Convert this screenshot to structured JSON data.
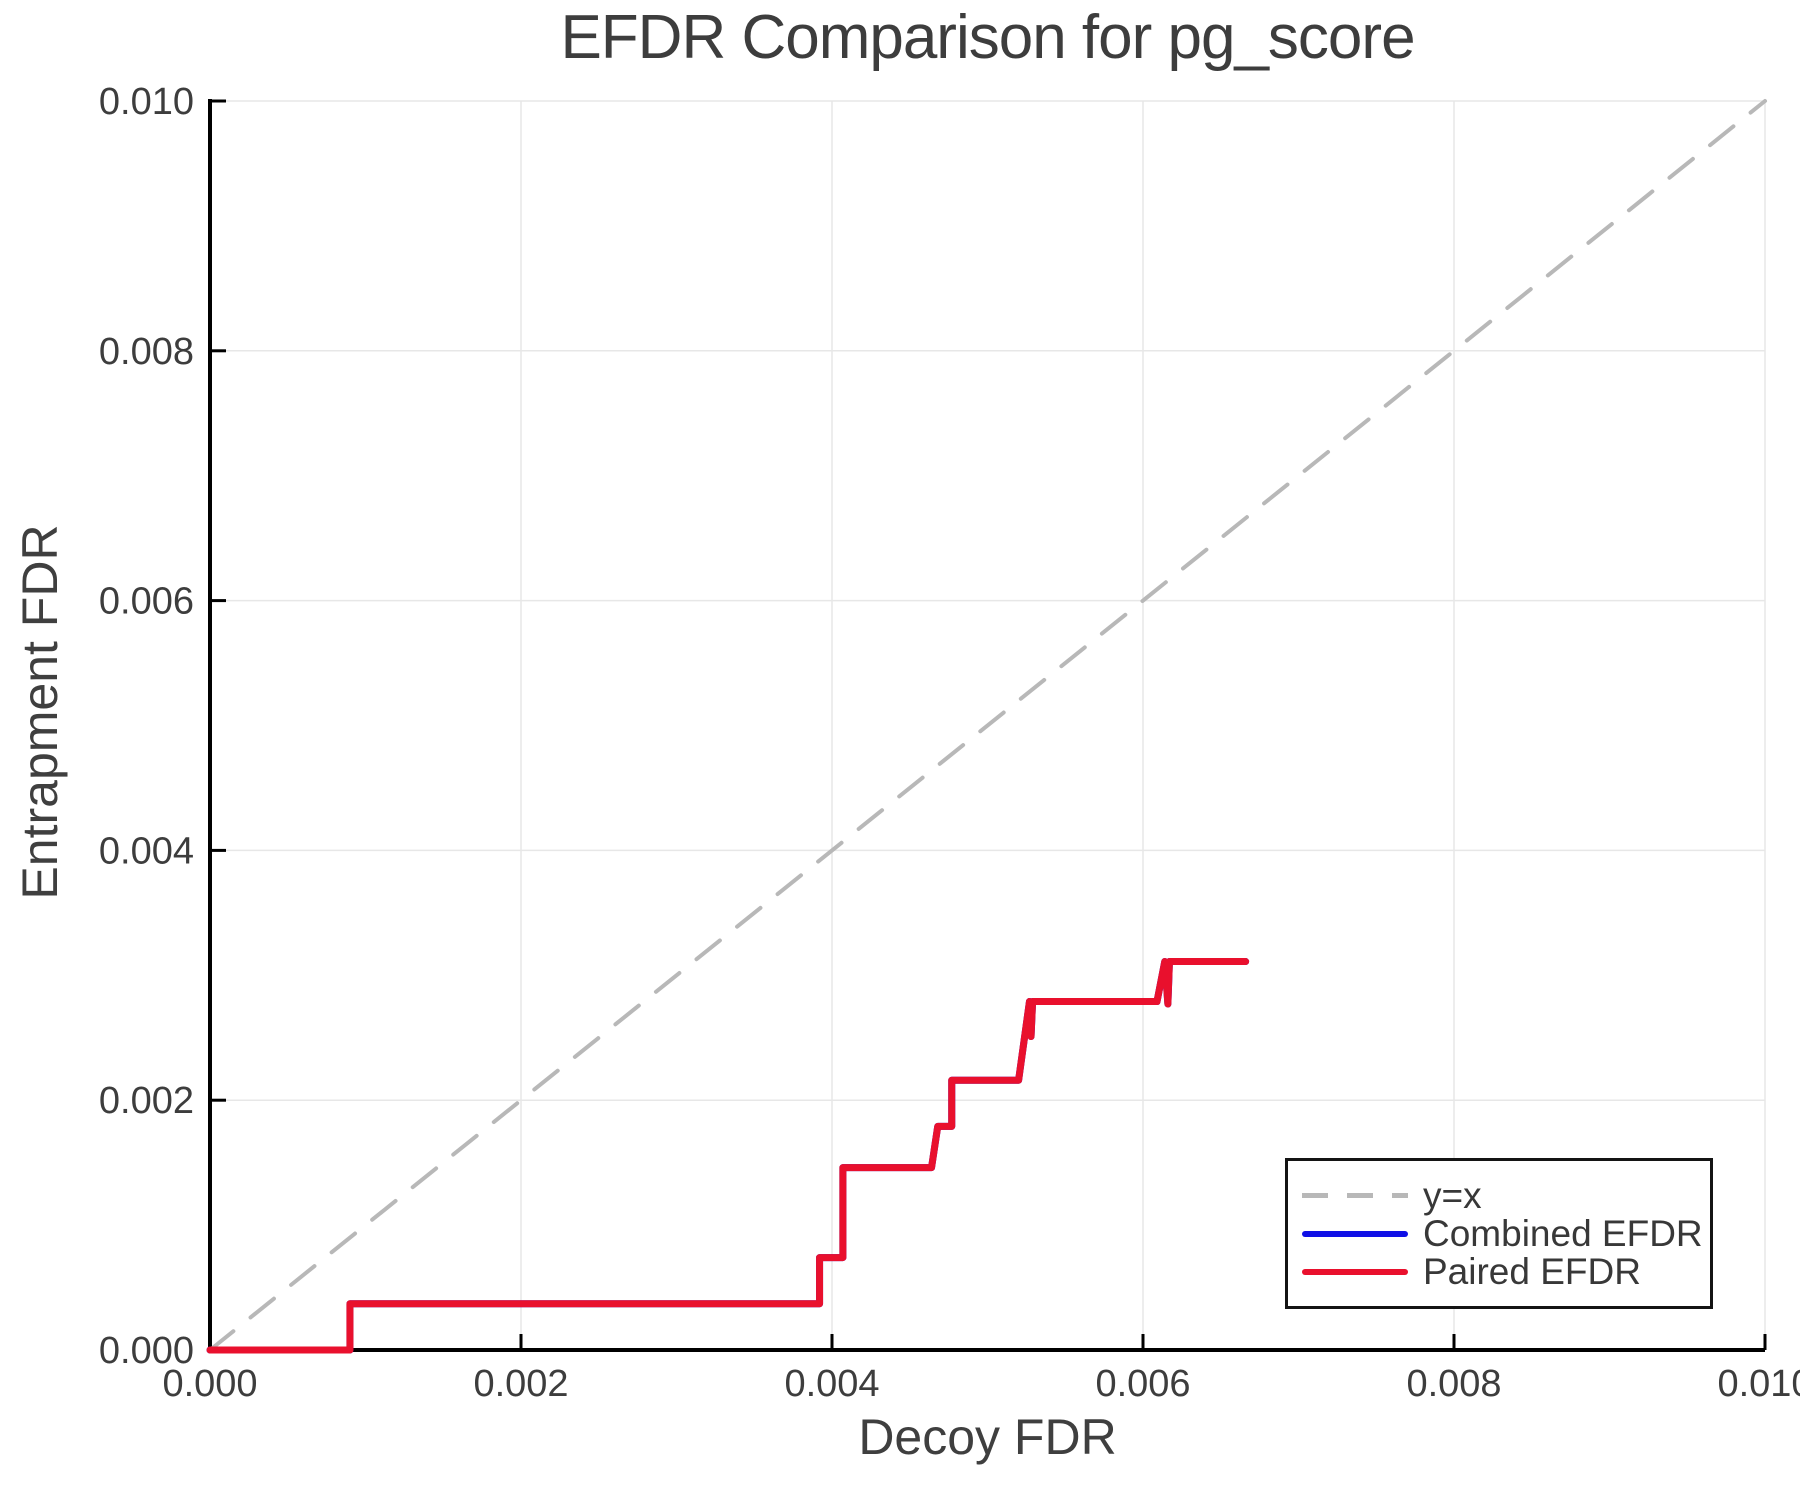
{
  "title": "EFDR Comparison for pg_score",
  "chart_data": {
    "type": "line",
    "title": "EFDR Comparison for pg_score",
    "xlabel": "Decoy FDR",
    "ylabel": "Entrapment FDR",
    "xlim": [
      0.0,
      0.01
    ],
    "ylim": [
      0.0,
      0.01
    ],
    "grid": true,
    "legend_position": "bottom-right",
    "xticks": {
      "values": [
        0.0,
        0.002,
        0.004,
        0.006,
        0.008,
        0.01
      ],
      "labels": [
        "0.000",
        "0.002",
        "0.004",
        "0.006",
        "0.008",
        "0.010"
      ]
    },
    "yticks": {
      "values": [
        0.0,
        0.002,
        0.004,
        0.006,
        0.008,
        0.01
      ],
      "labels": [
        "0.000",
        "0.002",
        "0.004",
        "0.006",
        "0.008",
        "0.010"
      ]
    },
    "colors": {
      "text": "#3d3d3d",
      "grid": "#e7e7e7",
      "axis": "#000000",
      "background": "#ffffff"
    },
    "series": [
      {
        "name": "y=x",
        "color": "#b8b8b8",
        "dashed": true,
        "width": 4,
        "points": [
          [
            0.0,
            0.0
          ],
          [
            0.01,
            0.01
          ]
        ]
      },
      {
        "name": "Combined EFDR",
        "color": "#0f0fe6",
        "dashed": false,
        "width": 7,
        "points": [
          [
            0.0,
            0.0
          ],
          [
            0.0009,
            0.0
          ],
          [
            0.0009,
            0.00037
          ],
          [
            0.00392,
            0.00037
          ],
          [
            0.00392,
            0.00074
          ],
          [
            0.00407,
            0.00074
          ],
          [
            0.00407,
            0.00146
          ],
          [
            0.00464,
            0.00146
          ],
          [
            0.00468,
            0.00179
          ],
          [
            0.00477,
            0.00179
          ],
          [
            0.00477,
            0.00216
          ],
          [
            0.0052,
            0.00216
          ],
          [
            0.00527,
            0.00279
          ],
          [
            0.00528,
            0.00251
          ],
          [
            0.00529,
            0.00279
          ],
          [
            0.00609,
            0.00279
          ],
          [
            0.00614,
            0.00311
          ],
          [
            0.00616,
            0.00277
          ],
          [
            0.00617,
            0.00311
          ],
          [
            0.00666,
            0.00311
          ]
        ]
      },
      {
        "name": "Paired EFDR",
        "color": "#e9102d",
        "dashed": false,
        "width": 7,
        "points": [
          [
            0.0,
            0.0
          ],
          [
            0.0009,
            0.0
          ],
          [
            0.0009,
            0.00037
          ],
          [
            0.00392,
            0.00037
          ],
          [
            0.00392,
            0.00074
          ],
          [
            0.00407,
            0.00074
          ],
          [
            0.00407,
            0.00146
          ],
          [
            0.00464,
            0.00146
          ],
          [
            0.00468,
            0.00179
          ],
          [
            0.00477,
            0.00179
          ],
          [
            0.00477,
            0.00216
          ],
          [
            0.0052,
            0.00216
          ],
          [
            0.00527,
            0.00279
          ],
          [
            0.00528,
            0.00251
          ],
          [
            0.00529,
            0.00279
          ],
          [
            0.00609,
            0.00279
          ],
          [
            0.00614,
            0.00311
          ],
          [
            0.00616,
            0.00277
          ],
          [
            0.00617,
            0.00311
          ],
          [
            0.00666,
            0.00311
          ]
        ]
      }
    ]
  }
}
